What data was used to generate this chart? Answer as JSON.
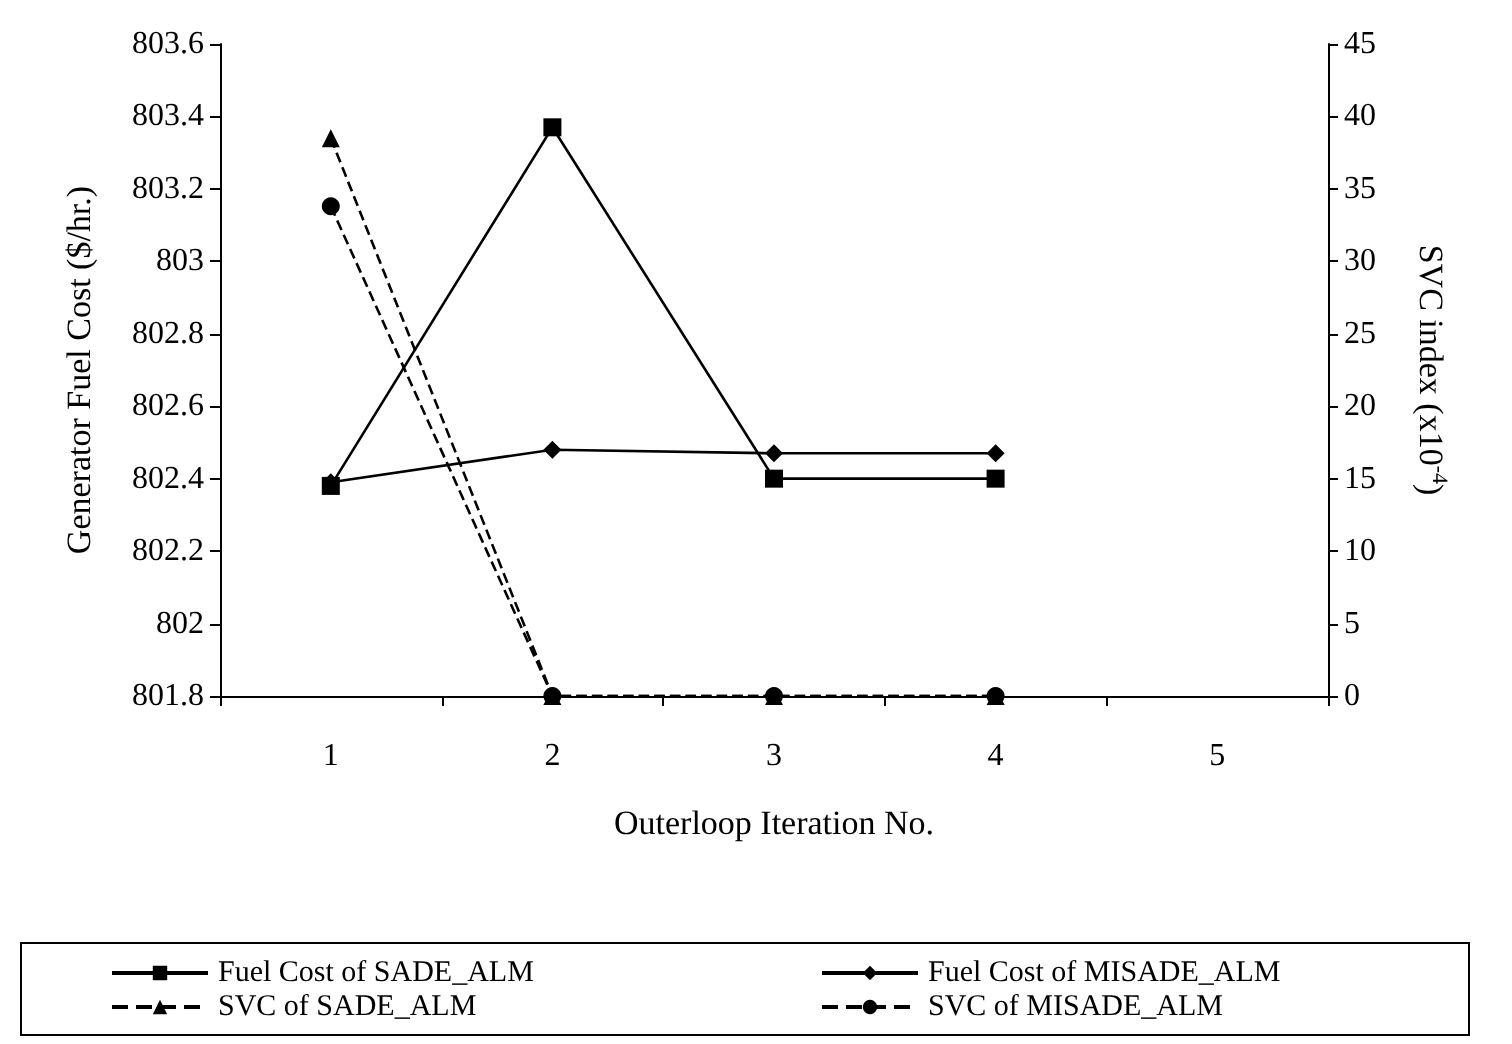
{
  "chart_data": {
    "type": "line",
    "xlabel": "Outerloop Iteration No.",
    "ylabel": "Generator Fuel Cost ($/hr.)",
    "y2label": "SVC index (x10$^{-4}$)",
    "categories": [
      "1",
      "2",
      "3",
      "4",
      "5"
    ],
    "series": [
      {
        "name": "Fuel Cost of SADE_ALM",
        "color": "#000000",
        "values": [
          802.38,
          803.37,
          802.4,
          802.4,
          null
        ],
        "marker": "square",
        "line_style": "solid"
      },
      {
        "name": "Fuel Cost of MISADE_ALM",
        "color": "#000000",
        "values": [
          802.39,
          802.48,
          802.47,
          802.47,
          null
        ],
        "marker": "diamond",
        "line_style": "solid"
      },
      {
        "name": "SVC of SADE_ALM",
        "color": "#000000",
        "values": [
          38.5,
          0,
          0,
          0,
          null
        ],
        "marker": "triangle",
        "line_style": "dashed",
        "axis": "y2"
      },
      {
        "name": "SVC of MISADE_ALM",
        "color": "#000000",
        "values": [
          33.8,
          0,
          0,
          0,
          null
        ],
        "marker": "circle",
        "line_style": "dashed",
        "axis": "y2"
      }
    ],
    "ylim": [
      801.8,
      803.6
    ],
    "yticks": [
      801.8,
      802,
      802.2,
      802.4,
      802.6,
      802.8,
      803,
      803.2,
      803.4,
      803.6
    ],
    "y2lim": [
      0,
      45
    ],
    "y2ticks": [
      0,
      5,
      10,
      15,
      20,
      25,
      30,
      35,
      40,
      45
    ],
    "grid": false,
    "legend": "bottom"
  }
}
